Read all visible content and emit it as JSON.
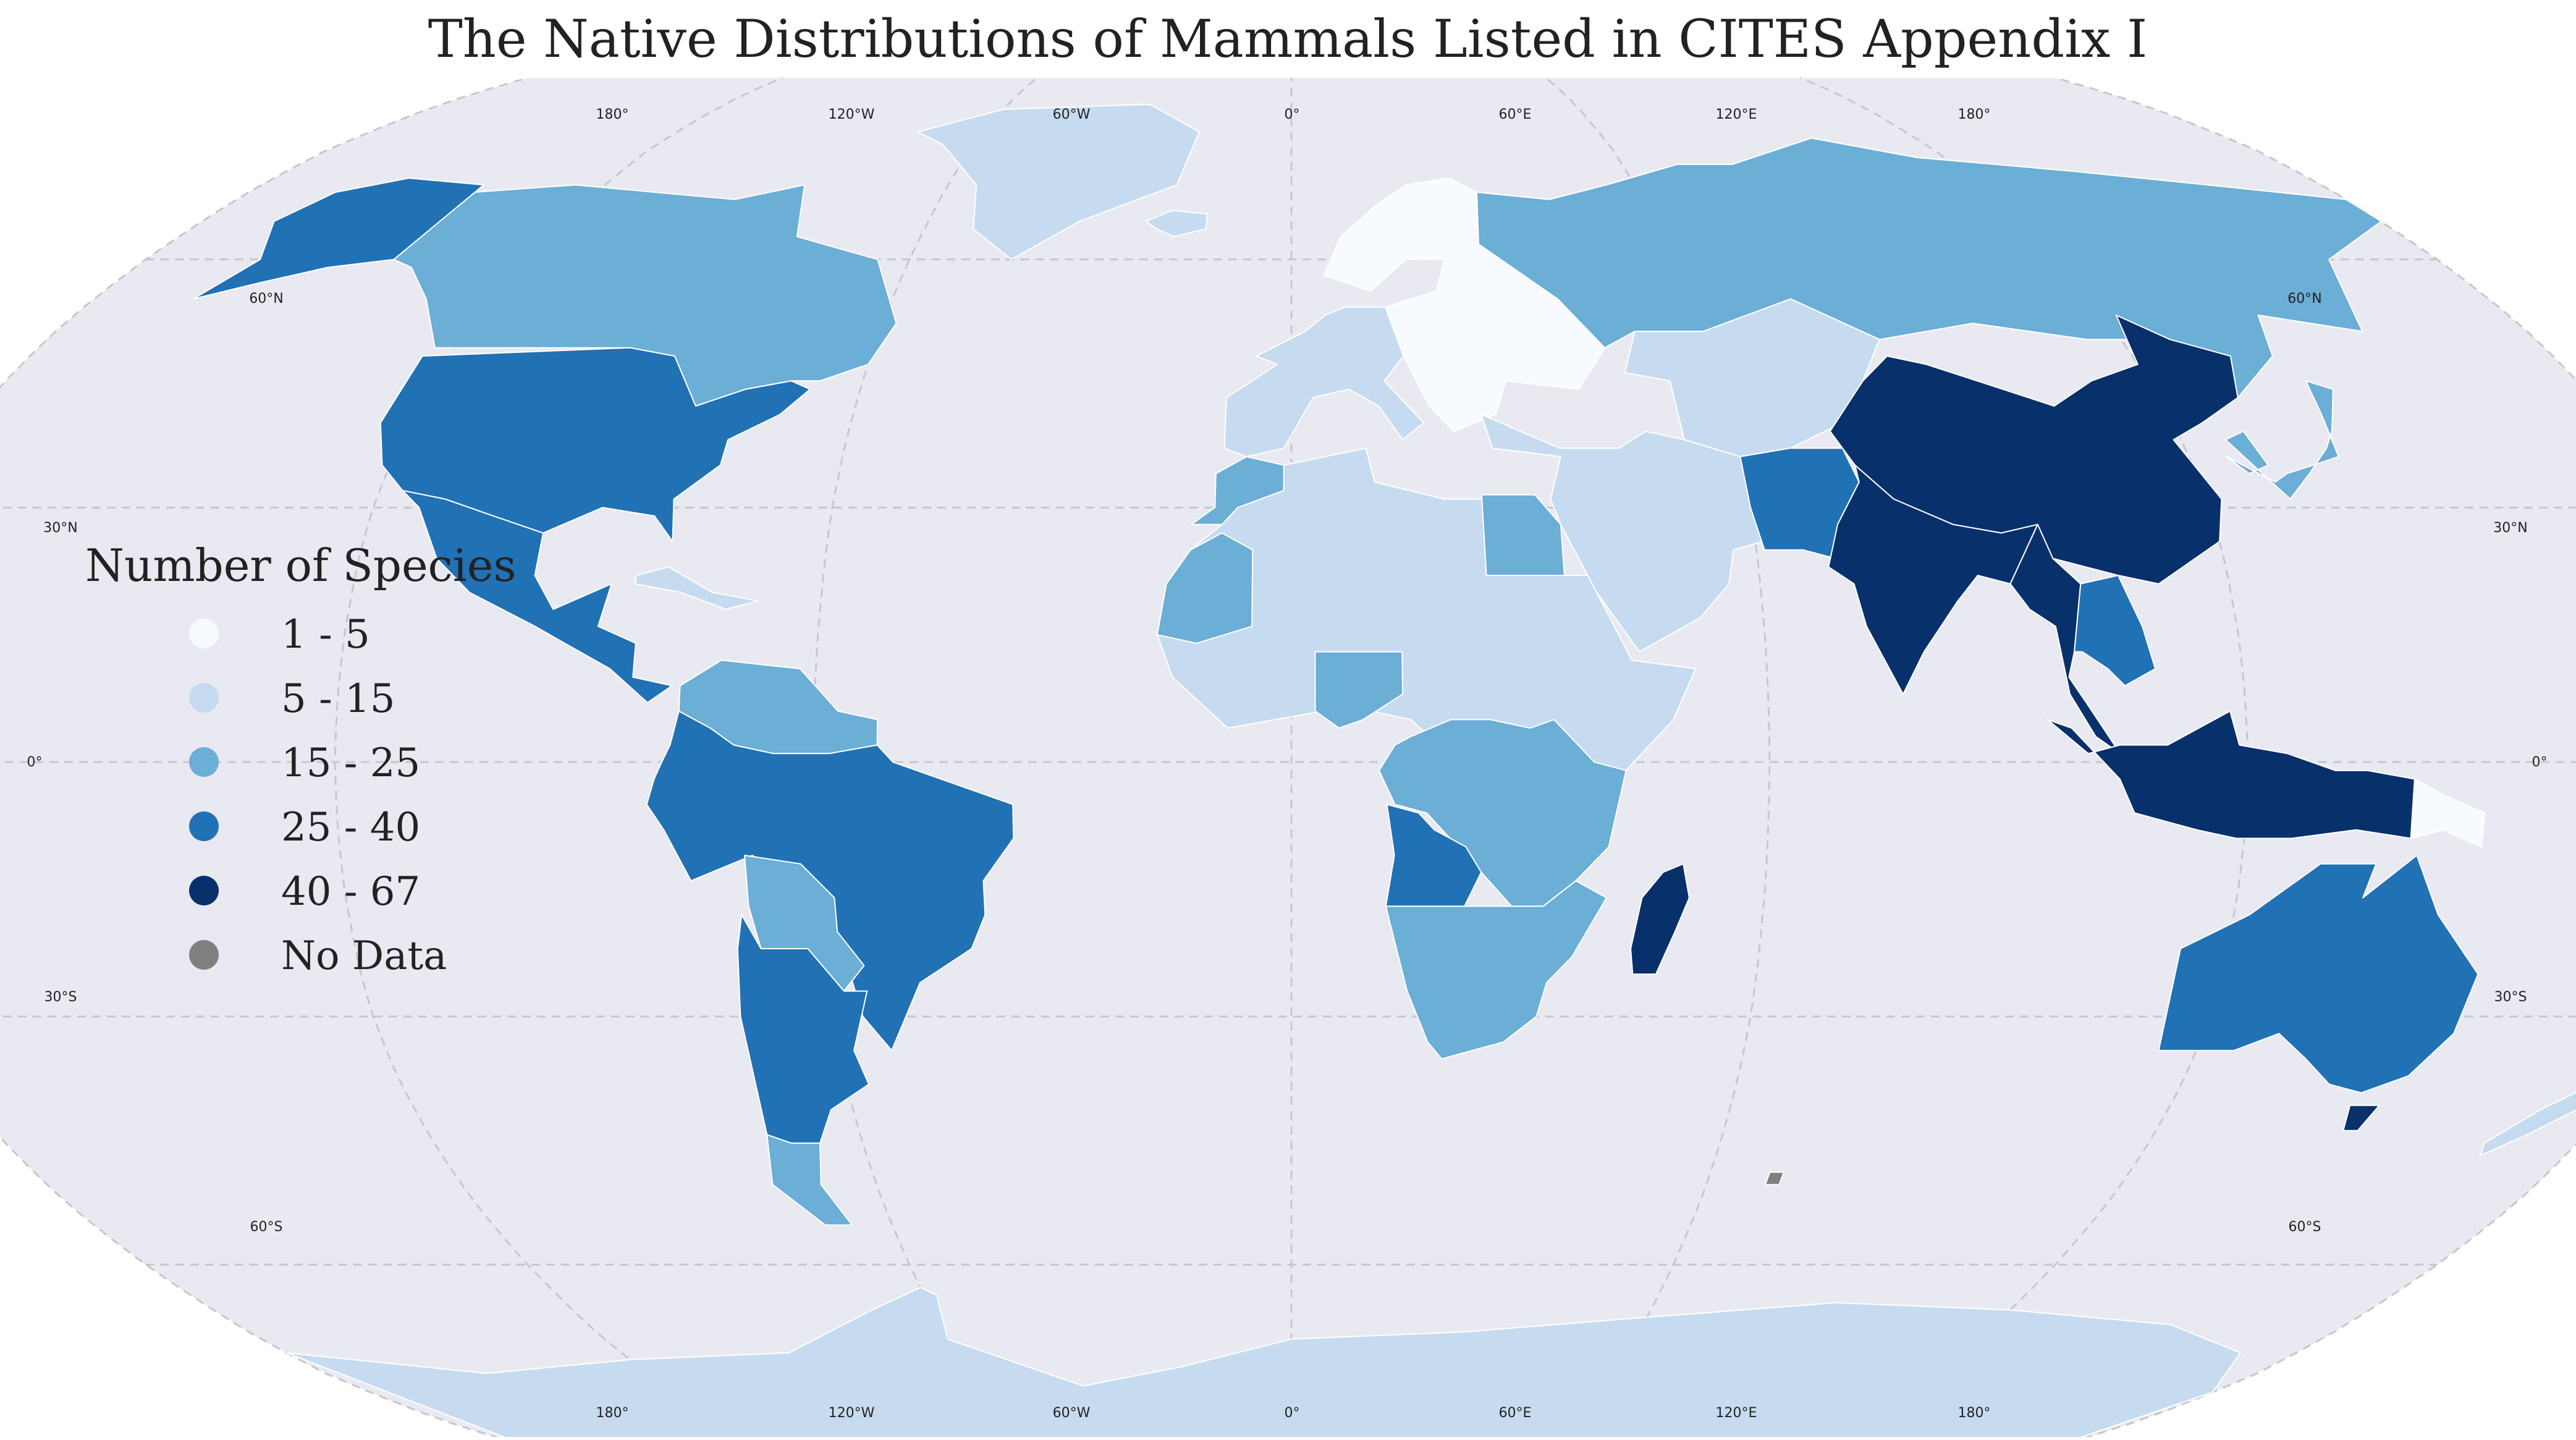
{
  "title": "The Native Distributions of Mammals Listed in CITES Appendix I",
  "map": {
    "projection": "robinson",
    "ocean_color": "#e9e9f1",
    "graticule": {
      "longitudes": [
        -180,
        -120,
        -60,
        0,
        60,
        120,
        180
      ],
      "latitudes": [
        60,
        30,
        0,
        -30,
        -60
      ],
      "top_labels": [
        "180°",
        "120°W",
        "60°W",
        "0°",
        "60°E",
        "120°E",
        "180°"
      ],
      "bottom_labels": [
        "180°",
        "120°W",
        "60°W",
        "0°",
        "60°E",
        "120°E",
        "180°"
      ],
      "left_labels": [
        "60°N",
        "30°N",
        "0°",
        "30°S",
        "60°S"
      ],
      "right_labels": [
        "60°N",
        "30°N",
        "0°",
        "30°S",
        "60°S"
      ]
    }
  },
  "legend": {
    "title": "Number of Species",
    "entries": [
      {
        "label": "1 - 5",
        "color": "#f7fbff"
      },
      {
        "label": "5 - 15",
        "color": "#c6dbef"
      },
      {
        "label": "15 - 25",
        "color": "#6baed6"
      },
      {
        "label": "25 - 40",
        "color": "#2171b5"
      },
      {
        "label": "40 - 67",
        "color": "#08306b"
      },
      {
        "label": "No Data",
        "color": "#808080"
      }
    ]
  },
  "regions": [
    {
      "name": "Greenland",
      "class": 1
    },
    {
      "name": "Canada",
      "class": 2
    },
    {
      "name": "Alaska",
      "class": 3
    },
    {
      "name": "United States",
      "class": 3
    },
    {
      "name": "Mexico & Central America",
      "class": 3
    },
    {
      "name": "Caribbean",
      "class": 1
    },
    {
      "name": "Venezuela & Guianas",
      "class": 2
    },
    {
      "name": "Brazil & Andes",
      "class": 3
    },
    {
      "name": "Bolivia & Paraguay",
      "class": 2
    },
    {
      "name": "Argentina & Chile",
      "class": 3
    },
    {
      "name": "Patagonia",
      "class": 2
    },
    {
      "name": "Iceland",
      "class": 1
    },
    {
      "name": "Western Europe",
      "class": 1
    },
    {
      "name": "Scandinavia & Eastern Europe",
      "class": 0
    },
    {
      "name": "Russia",
      "class": 2
    },
    {
      "name": "Central Asia",
      "class": 1
    },
    {
      "name": "Middle East",
      "class": 1
    },
    {
      "name": "Morocco",
      "class": 2
    },
    {
      "name": "Sahara & North Africa",
      "class": 1
    },
    {
      "name": "Egypt",
      "class": 2
    },
    {
      "name": "Mauritania",
      "class": 2
    },
    {
      "name": "Nigeria",
      "class": 2
    },
    {
      "name": "Central & East Africa",
      "class": 2
    },
    {
      "name": "Angola",
      "class": 3
    },
    {
      "name": "Southern Africa",
      "class": 2
    },
    {
      "name": "Madagascar",
      "class": 4
    },
    {
      "name": "Afghanistan & Pakistan",
      "class": 3
    },
    {
      "name": "China",
      "class": 4
    },
    {
      "name": "India",
      "class": 4
    },
    {
      "name": "Southeast Asia",
      "class": 4
    },
    {
      "name": "Indochina",
      "class": 3
    },
    {
      "name": "Korea & Japan",
      "class": 2
    },
    {
      "name": "Indonesia",
      "class": 4
    },
    {
      "name": "Papua New Guinea",
      "class": 0
    },
    {
      "name": "Australia",
      "class": 3
    },
    {
      "name": "Tasmania",
      "class": 4
    },
    {
      "name": "New Zealand",
      "class": 1
    },
    {
      "name": "Antarctica",
      "class": 1
    },
    {
      "name": "Kerguelen",
      "class": 5
    }
  ]
}
